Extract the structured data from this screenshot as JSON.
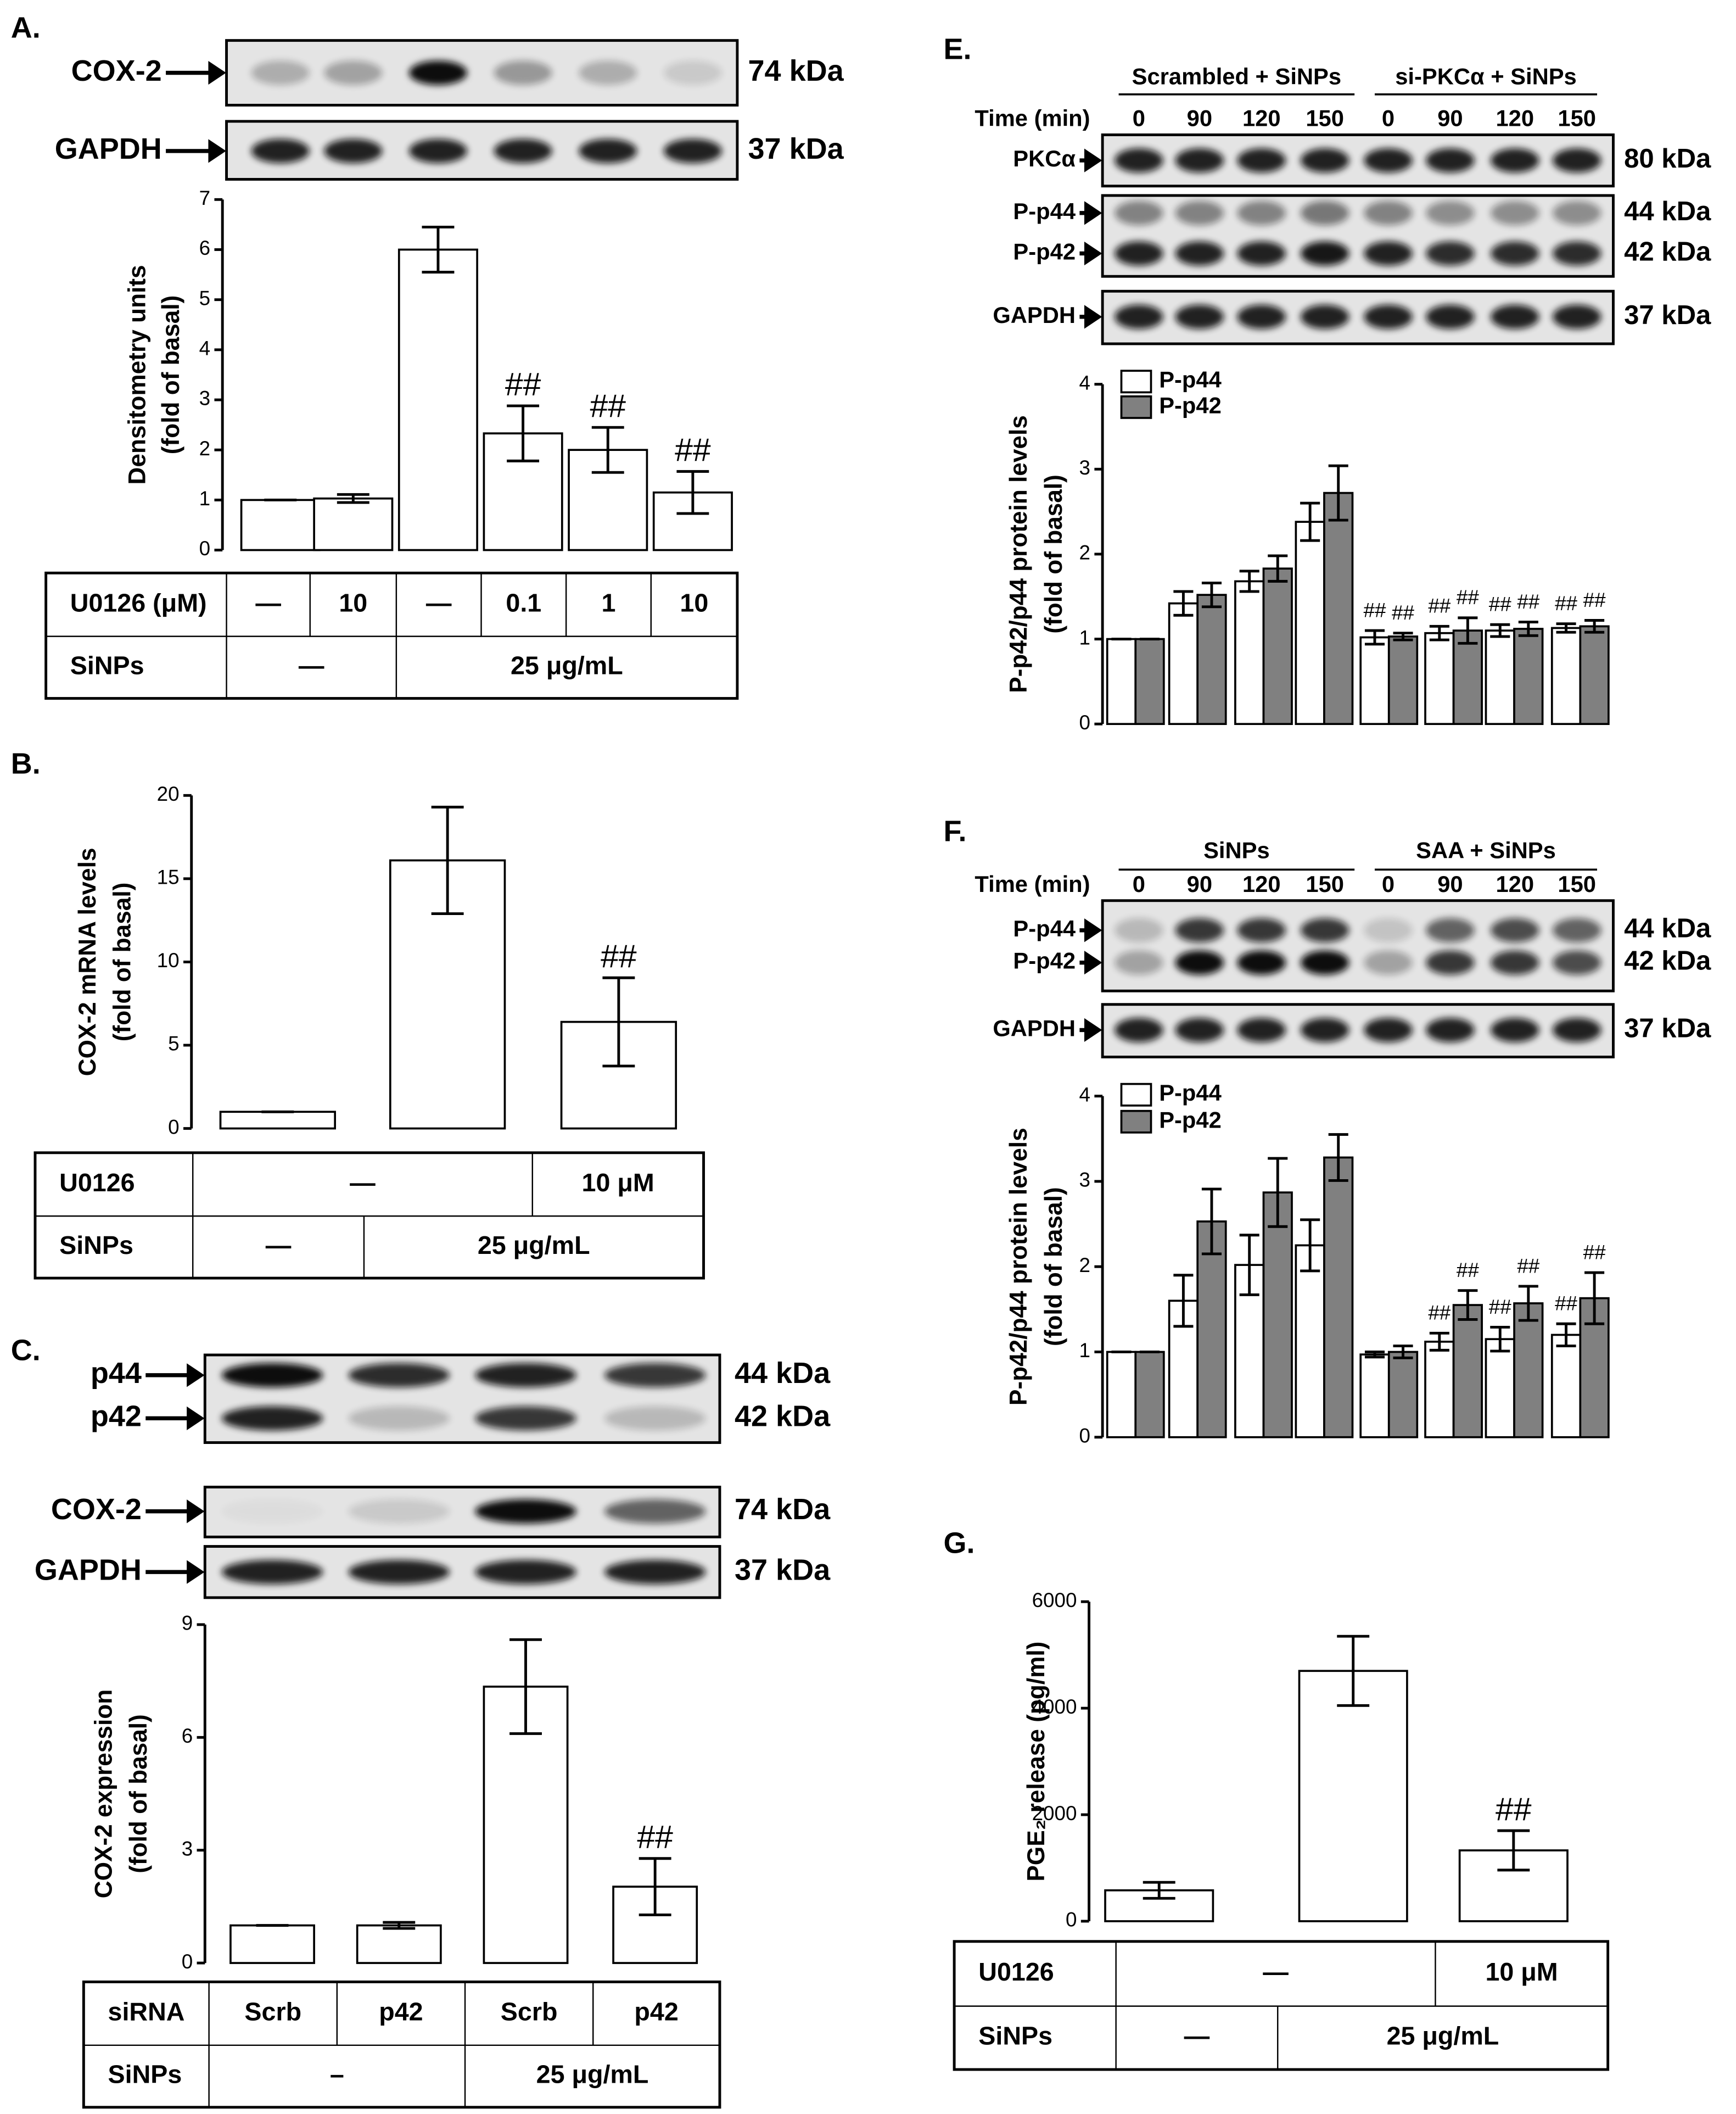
{
  "chart_data": [
    {
      "type": "bar",
      "panel_label": "A.",
      "blots": [
        {
          "bands": [
            {
              "label": "COX-2",
              "kda": "74 kDa"
            }
          ]
        },
        {
          "bands": [
            {
              "label": "GAPDH",
              "kda": "37 kDa"
            }
          ]
        }
      ],
      "y_label": [
        "Densitometry units",
        "(fold of basal)"
      ],
      "values": [
        1,
        1.03,
        6,
        2.33,
        2,
        1.15
      ],
      "errors": [
        0,
        0.08,
        0.45,
        0.55,
        0.45,
        0.42
      ],
      "annotations": [
        null,
        null,
        null,
        "##",
        "##",
        "##"
      ],
      "color": "#ffffff",
      "ylim": [
        0,
        7
      ],
      "yticks": [
        0,
        1,
        2,
        3,
        4,
        5,
        6,
        7
      ],
      "table": [
        [
          "U0126 (μM)",
          "—",
          "10",
          "—",
          "0.1",
          "1",
          "10"
        ],
        [
          "SiNPs",
          "—",
          "25 μg/mL"
        ]
      ]
    },
    {
      "type": "bar",
      "panel_label": "B.",
      "y_label": [
        "COX-2 mRNA levels",
        "(fold of basal)"
      ],
      "values": [
        1,
        16.1,
        6.4
      ],
      "errors": [
        0,
        3.2,
        2.65
      ],
      "annotations": [
        null,
        null,
        "##"
      ],
      "color": "#ffffff",
      "ylim": [
        0,
        20
      ],
      "yticks": [
        0,
        5,
        10,
        15,
        20
      ],
      "table": [
        [
          "U0126",
          "—",
          "10 μM"
        ],
        [
          "SiNPs",
          "—",
          "25 μg/mL"
        ]
      ]
    },
    {
      "type": "bar",
      "panel_label": "C.",
      "blots": [
        {
          "bands": [
            {
              "label": "p44",
              "kda": "44 kDa"
            },
            {
              "label": "p42",
              "kda": "42 kDa"
            }
          ]
        },
        {
          "bands": [
            {
              "label": "COX-2",
              "kda": "74 kDa"
            }
          ]
        },
        {
          "bands": [
            {
              "label": "GAPDH",
              "kda": "37 kDa"
            }
          ]
        }
      ],
      "y_label": [
        "COX-2 expression",
        "(fold of basal)"
      ],
      "values": [
        1,
        1,
        7.35,
        2.03
      ],
      "errors": [
        0,
        0.08,
        1.25,
        0.75
      ],
      "annotations": [
        null,
        null,
        null,
        "##"
      ],
      "color": "#ffffff",
      "ylim": [
        0,
        9
      ],
      "yticks": [
        0,
        3,
        6,
        9
      ],
      "table": [
        [
          "siRNA",
          "Scrb",
          "p42",
          "Scrb",
          "p42"
        ],
        [
          "SiNPs",
          "–",
          "25 μg/mL"
        ]
      ]
    },
    {
      "type": "bar",
      "panel_label": "E.",
      "groups": [
        "Scrambled + SiNPs",
        "si-PKCα + SiNPs"
      ],
      "time_label": "Time (min)",
      "categories": [
        "0",
        "90",
        "120",
        "150",
        "0",
        "90",
        "120",
        "150"
      ],
      "blots": [
        {
          "bands": [
            {
              "label": "PKCα",
              "kda": "80 kDa"
            }
          ]
        },
        {
          "bands": [
            {
              "label": "P-p44",
              "kda": "44 kDa"
            },
            {
              "label": "P-p42",
              "kda": "42 kDa"
            }
          ]
        },
        {
          "bands": [
            {
              "label": "GAPDH",
              "kda": "37 kDa"
            }
          ]
        }
      ],
      "y_label": [
        "P-p42/p44 protein levels",
        "(fold of basal)"
      ],
      "series": [
        {
          "name": "P-p44",
          "color": "#ffffff",
          "values": [
            1,
            1.42,
            1.68,
            2.38,
            1.02,
            1.07,
            1.1,
            1.13
          ],
          "errors": [
            0,
            0.14,
            0.12,
            0.22,
            0.08,
            0.08,
            0.07,
            0.05
          ],
          "annotations": [
            null,
            null,
            null,
            null,
            "##",
            "##",
            "##",
            "##"
          ]
        },
        {
          "name": "P-p42",
          "color": "#808080",
          "values": [
            1,
            1.52,
            1.83,
            2.72,
            1.03,
            1.1,
            1.12,
            1.15
          ],
          "errors": [
            0,
            0.14,
            0.15,
            0.32,
            0.04,
            0.15,
            0.08,
            0.07
          ],
          "annotations": [
            null,
            null,
            null,
            null,
            "##",
            "##",
            "##",
            "##"
          ]
        }
      ],
      "ylim": [
        0,
        4
      ],
      "yticks": [
        0,
        1,
        2,
        3,
        4
      ],
      "legend": "upper left"
    },
    {
      "type": "bar",
      "panel_label": "F.",
      "groups": [
        "SiNPs",
        "SAA + SiNPs"
      ],
      "time_label": "Time (min)",
      "categories": [
        "0",
        "90",
        "120",
        "150",
        "0",
        "90",
        "120",
        "150"
      ],
      "blots": [
        {
          "bands": [
            {
              "label": "P-p44",
              "kda": "44 kDa"
            },
            {
              "label": "P-p42",
              "kda": "42 kDa"
            }
          ]
        },
        {
          "bands": [
            {
              "label": "GAPDH",
              "kda": "37 kDa"
            }
          ]
        }
      ],
      "y_label": [
        "P-p42/p44 protein levels",
        "(fold of basal)"
      ],
      "series": [
        {
          "name": "P-p44",
          "color": "#ffffff",
          "values": [
            1,
            1.6,
            2.02,
            2.25,
            0.97,
            1.12,
            1.15,
            1.2
          ],
          "errors": [
            0,
            0.3,
            0.35,
            0.3,
            0.03,
            0.1,
            0.14,
            0.13
          ],
          "annotations": [
            null,
            null,
            null,
            null,
            null,
            "##",
            "##",
            "##"
          ]
        },
        {
          "name": "P-p42",
          "color": "#808080",
          "values": [
            1,
            2.53,
            2.87,
            3.28,
            1,
            1.55,
            1.57,
            1.63
          ],
          "errors": [
            0,
            0.38,
            0.4,
            0.27,
            0.07,
            0.17,
            0.2,
            0.3
          ],
          "annotations": [
            null,
            null,
            null,
            null,
            null,
            "##",
            "##",
            "##"
          ]
        }
      ],
      "ylim": [
        0,
        4
      ],
      "yticks": [
        0,
        1,
        2,
        3,
        4
      ],
      "legend": "upper left"
    },
    {
      "type": "bar",
      "panel_label": "G.",
      "y_label": [
        "PGE₂ release (pg/ml)"
      ],
      "values": [
        580,
        4700,
        1330
      ],
      "errors": [
        150,
        650,
        370
      ],
      "annotations": [
        null,
        null,
        "##"
      ],
      "color": "#ffffff",
      "ylim": [
        0,
        6000
      ],
      "yticks": [
        0,
        2000,
        4000,
        6000
      ],
      "table": [
        [
          "U0126",
          "—",
          "10 μM"
        ],
        [
          "SiNPs",
          "—",
          "25 μg/mL"
        ]
      ]
    }
  ]
}
